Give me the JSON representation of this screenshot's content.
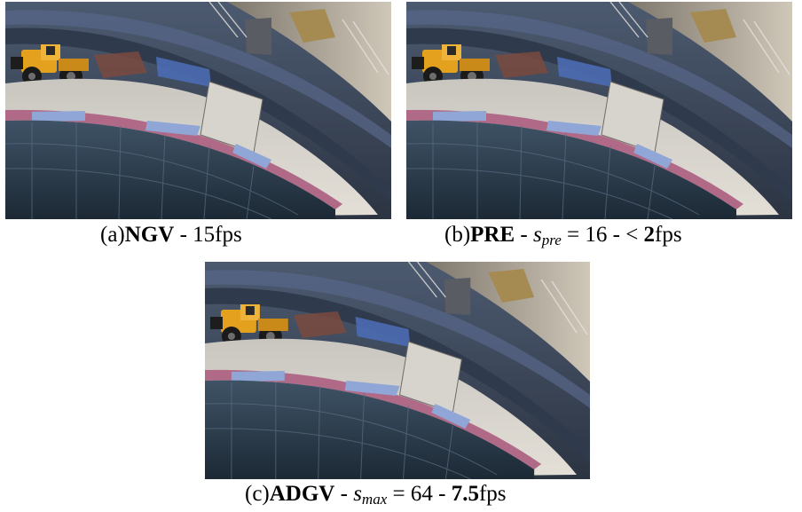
{
  "figure": {
    "panels": [
      {
        "id": "a",
        "image_alt": "construction site photo with curved stadium wall and yellow bulldozer",
        "caption": {
          "prefix": "(a)",
          "method": "NGV",
          "sep1": " - ",
          "fps_value": "15",
          "fps_unit": "fps"
        }
      },
      {
        "id": "b",
        "image_alt": "construction site photo with curved stadium wall and yellow bulldozer",
        "caption": {
          "prefix": "(b)",
          "method": "PRE",
          "sep1": " - ",
          "param_symbol": "s",
          "param_sub": "pre",
          "param_eq": " = 16",
          "sep2": " - ",
          "fps_lt": "< ",
          "fps_value": "2",
          "fps_unit": "fps"
        }
      },
      {
        "id": "c",
        "image_alt": "construction site photo with curved stadium wall and yellow bulldozer",
        "caption": {
          "prefix": "(c)",
          "method": "ADGV",
          "sep1": " - ",
          "param_symbol": "s",
          "param_sub": "max",
          "param_eq": " = 64",
          "sep2": " - ",
          "fps_value": "7.5",
          "fps_unit": "fps"
        }
      }
    ]
  }
}
